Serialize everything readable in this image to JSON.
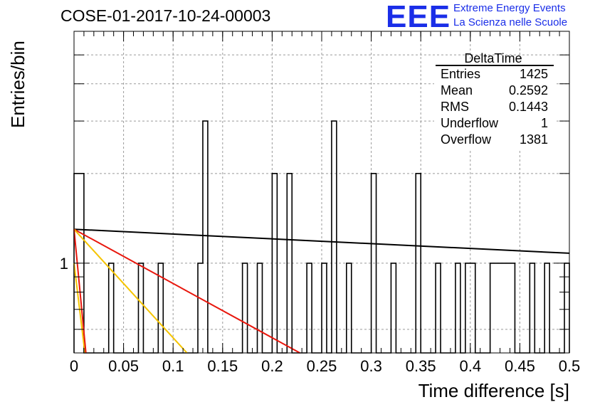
{
  "title": "COSE-01-2017-10-24-00003",
  "brand": {
    "logo": "EEE",
    "line1": "Extreme Energy Events",
    "line2": "La Scienza nelle Scuole",
    "color": "#1a2ee8"
  },
  "chart_data": {
    "type": "histogram",
    "xlabel": "Time difference [s]",
    "ylabel": "Entries/bin",
    "xlim": [
      0,
      0.5
    ],
    "y_scale": "log",
    "ylim": [
      0.5,
      6
    ],
    "grid": true,
    "x_ticks": [
      "0",
      "0.05",
      "0.1",
      "0.15",
      "0.2",
      "0.25",
      "0.3",
      "0.35",
      "0.4",
      "0.45",
      "0.5"
    ],
    "y_ticks": [
      "1"
    ],
    "bin_width": 0.005,
    "bins": [
      {
        "x": 0.0,
        "y": 2
      },
      {
        "x": 0.005,
        "y": 2
      },
      {
        "x": 0.035,
        "y": 1
      },
      {
        "x": 0.065,
        "y": 1
      },
      {
        "x": 0.085,
        "y": 1
      },
      {
        "x": 0.125,
        "y": 1
      },
      {
        "x": 0.13,
        "y": 3
      },
      {
        "x": 0.17,
        "y": 1
      },
      {
        "x": 0.185,
        "y": 1
      },
      {
        "x": 0.2,
        "y": 2
      },
      {
        "x": 0.215,
        "y": 2
      },
      {
        "x": 0.235,
        "y": 1
      },
      {
        "x": 0.25,
        "y": 1
      },
      {
        "x": 0.26,
        "y": 3
      },
      {
        "x": 0.275,
        "y": 1
      },
      {
        "x": 0.3,
        "y": 2
      },
      {
        "x": 0.32,
        "y": 1
      },
      {
        "x": 0.345,
        "y": 2
      },
      {
        "x": 0.365,
        "y": 1
      },
      {
        "x": 0.385,
        "y": 1
      },
      {
        "x": 0.395,
        "y": 1
      },
      {
        "x": 0.4,
        "y": 1
      },
      {
        "x": 0.42,
        "y": 1
      },
      {
        "x": 0.425,
        "y": 1
      },
      {
        "x": 0.43,
        "y": 1
      },
      {
        "x": 0.435,
        "y": 1
      },
      {
        "x": 0.44,
        "y": 1
      },
      {
        "x": 0.46,
        "y": 1
      },
      {
        "x": 0.475,
        "y": 1
      },
      {
        "x": 0.495,
        "y": 1
      }
    ],
    "fits": [
      {
        "color": "#000000",
        "x": [
          0.0,
          0.5
        ],
        "y": [
          1.3,
          1.08
        ]
      },
      {
        "color": "#e8170d",
        "x": [
          0.0,
          0.228
        ],
        "y": [
          1.3,
          0.5
        ]
      },
      {
        "color": "#f5c400",
        "x": [
          0.0,
          0.114
        ],
        "y": [
          1.3,
          0.5
        ]
      },
      {
        "color": "#f5c400",
        "x": [
          0.0,
          0.011
        ],
        "y": [
          1.0,
          0.5
        ]
      },
      {
        "color": "#e8170d",
        "x": [
          0.0,
          0.012
        ],
        "y": [
          1.3,
          0.5
        ]
      }
    ],
    "stats": {
      "title": "DeltaTime",
      "rows": [
        {
          "label": "Entries",
          "value": "1425"
        },
        {
          "label": "Mean",
          "value": "0.2592"
        },
        {
          "label": "RMS",
          "value": "0.1443"
        },
        {
          "label": "Underflow",
          "value": "1"
        },
        {
          "label": "Overflow",
          "value": "1381"
        }
      ]
    }
  }
}
